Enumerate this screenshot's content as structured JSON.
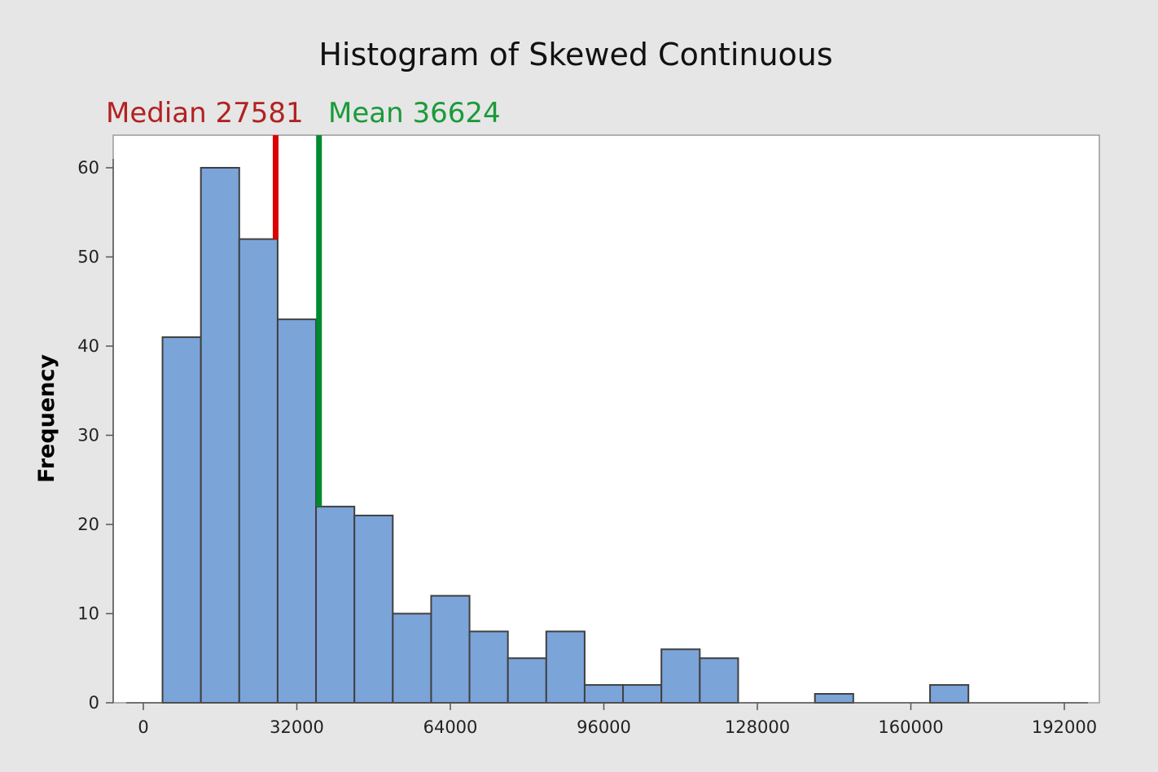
{
  "colors": {
    "background": "#e6e6e6",
    "plot_area": "#ffffff",
    "bar_fill": "#7ba4d9",
    "bar_edge": "#404040",
    "median_line": "#dd0000",
    "mean_line": "#008a2e",
    "median_text": "#b22222",
    "mean_text": "#1a9a3a"
  },
  "chart_data": {
    "type": "bar",
    "subtype": "histogram",
    "title": "Histogram of Skewed Continuous",
    "xlabel": "",
    "ylabel": "Frequency",
    "bin_width": 8000,
    "bins": [
      {
        "start": 4000,
        "end": 12000,
        "count": 41
      },
      {
        "start": 12000,
        "end": 20000,
        "count": 60
      },
      {
        "start": 20000,
        "end": 28000,
        "count": 52
      },
      {
        "start": 28000,
        "end": 36000,
        "count": 43
      },
      {
        "start": 36000,
        "end": 44000,
        "count": 22
      },
      {
        "start": 44000,
        "end": 52000,
        "count": 21
      },
      {
        "start": 52000,
        "end": 60000,
        "count": 10
      },
      {
        "start": 60000,
        "end": 68000,
        "count": 12
      },
      {
        "start": 68000,
        "end": 76000,
        "count": 8
      },
      {
        "start": 76000,
        "end": 84000,
        "count": 5
      },
      {
        "start": 84000,
        "end": 92000,
        "count": 8
      },
      {
        "start": 92000,
        "end": 100000,
        "count": 2
      },
      {
        "start": 100000,
        "end": 108000,
        "count": 2
      },
      {
        "start": 108000,
        "end": 116000,
        "count": 6
      },
      {
        "start": 116000,
        "end": 124000,
        "count": 5
      },
      {
        "start": 124000,
        "end": 132000,
        "count": 0
      },
      {
        "start": 132000,
        "end": 140000,
        "count": 0
      },
      {
        "start": 140000,
        "end": 148000,
        "count": 1
      },
      {
        "start": 148000,
        "end": 156000,
        "count": 0
      },
      {
        "start": 156000,
        "end": 164000,
        "count": 0
      },
      {
        "start": 164000,
        "end": 172000,
        "count": 2
      }
    ],
    "x_ticks": [
      0,
      32000,
      64000,
      96000,
      128000,
      160000,
      192000
    ],
    "y_ticks": [
      0,
      10,
      20,
      30,
      40,
      50,
      60
    ],
    "xlim": [
      -4000,
      196000
    ],
    "ylim": [
      0,
      63
    ],
    "reference_lines": [
      {
        "label": "Median 27581",
        "value": 27581,
        "top": 52
      },
      {
        "label": "Mean 36624",
        "value": 36624,
        "top": 22
      }
    ],
    "grid": false,
    "legend": "none"
  }
}
